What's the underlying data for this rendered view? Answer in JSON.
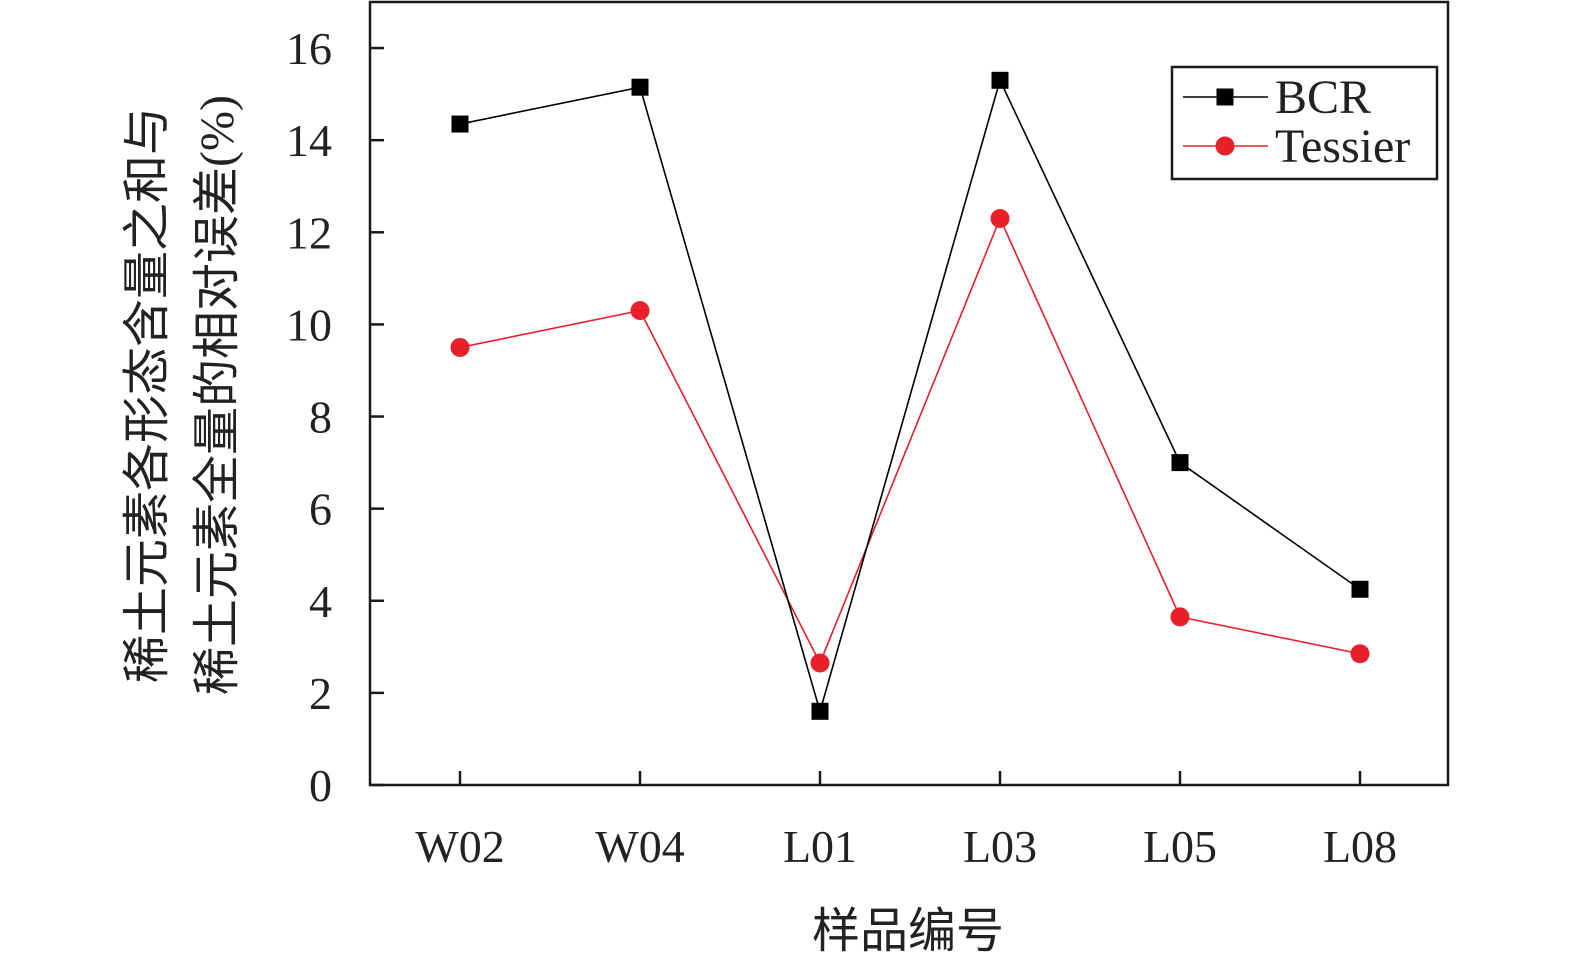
{
  "chart_data": {
    "type": "line",
    "title": "",
    "xlabel": "样品编号",
    "ylabel_lines": [
      "稀土元素各形态含量之和与",
      "稀土元素全量的相对误差(%)"
    ],
    "categories": [
      "W02",
      "W04",
      "L01",
      "L03",
      "L05",
      "L08"
    ],
    "ylim": [
      0,
      17
    ],
    "yticks": [
      0,
      2,
      4,
      6,
      8,
      10,
      12,
      14,
      16
    ],
    "grid": false,
    "legend_position": "top-right",
    "series": [
      {
        "name": "BCR",
        "color": "#000000",
        "marker": "square",
        "values": [
          14.35,
          15.15,
          1.6,
          15.3,
          7.0,
          4.25
        ]
      },
      {
        "name": "Tessier",
        "color": "#e8202a",
        "marker": "circle",
        "values": [
          9.5,
          10.3,
          2.65,
          12.3,
          3.65,
          2.85
        ]
      }
    ]
  }
}
